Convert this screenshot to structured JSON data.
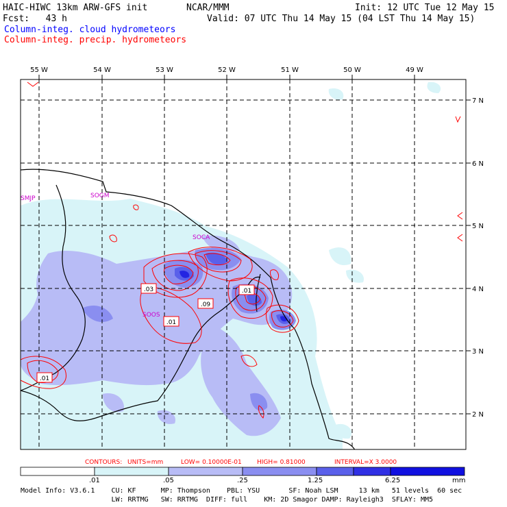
{
  "header": {
    "model_title": "HAIC-HIWC 13km ARW-GFS init",
    "org": "NCAR/MMM",
    "init": "Init: 12 UTC Tue 12 May 15",
    "fcst": "Fcst:   43 h",
    "valid": "Valid: 07 UTC Thu 14 May 15 (04 LST Thu 14 May 15)",
    "legend_cloud": "Column-integ. cloud hydrometeors",
    "legend_precip": "Column-integ. precip. hydrometeors"
  },
  "map": {
    "lon_labels": [
      "55 W",
      "54 W",
      "53 W",
      "52 W",
      "51 W",
      "50 W",
      "49 W"
    ],
    "lat_labels": [
      "7 N",
      "6 N",
      "5 N",
      "4 N",
      "3 N",
      "2 N"
    ],
    "stations": [
      "SMJP",
      "SOGM",
      "SOCA",
      "SOOS"
    ],
    "contour_labels": [
      ".03",
      ".09",
      ".01",
      ".01",
      ".01"
    ]
  },
  "contours_text": {
    "label": "CONTOURS:",
    "units": "UNITS=mm",
    "low": "LOW= 0.10000E-01",
    "high": "HIGH= 0.81000",
    "interval": "INTERVAL=X  3.0000"
  },
  "colorbar": {
    "ticks": [
      ".01",
      ".05",
      ".25",
      "1.25",
      "6.25"
    ],
    "units": "mm",
    "colors": [
      "#ffffff",
      "#d8f4f8",
      "#b8bcf6",
      "#8a8ef0",
      "#5a60ea",
      "#3030e4",
      "#1010e0"
    ]
  },
  "model_info": {
    "line1": "Model Info: V3.6.1    CU: KF      MP: Thompson    PBL: YSU       SF: Noah LSM     13 km   51 levels  60 sec",
    "line2": "                      LW: RRTMG   SW: RRTMG  DIFF: full    KM: 2D Smagor DAMP: Rayleigh3  SFLAY: MM5"
  }
}
